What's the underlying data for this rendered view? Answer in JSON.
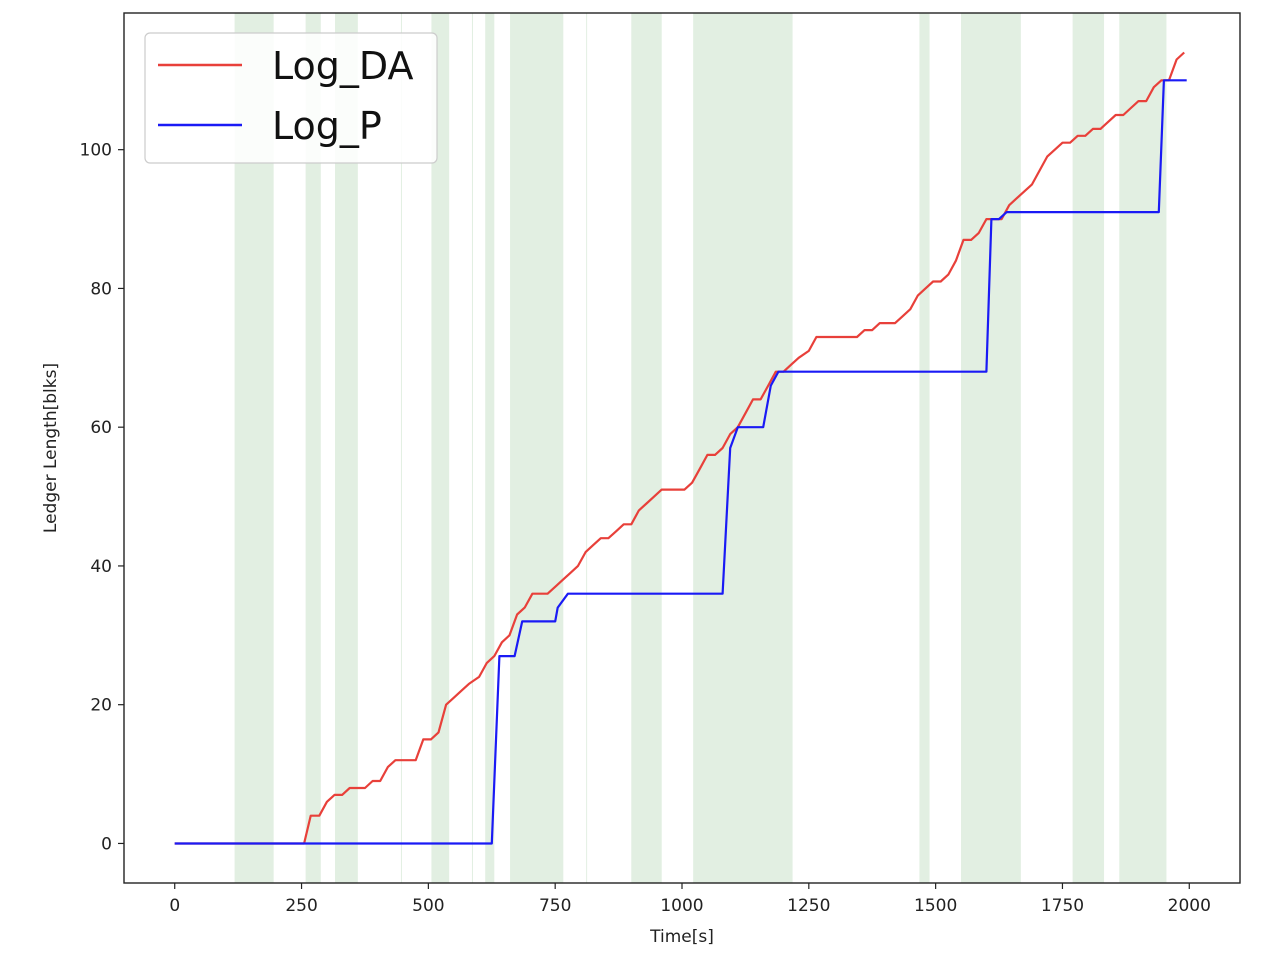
{
  "chart_data": {
    "type": "line",
    "xlabel": "Time[s]",
    "ylabel": "Ledger Length[blks]",
    "xlim": [
      -100,
      2100
    ],
    "ylim": [
      -5.7,
      119.7
    ],
    "xticks": [
      0,
      250,
      500,
      750,
      1000,
      1250,
      1500,
      1750,
      2000
    ],
    "yticks": [
      0,
      20,
      40,
      60,
      80,
      100
    ],
    "grid": false,
    "legend_position": "upper-left",
    "shaded_intervals_color": "#d8ead8",
    "shaded_intervals": [
      [
        118,
        195
      ],
      [
        258,
        288
      ],
      [
        316,
        361
      ],
      [
        446,
        447
      ],
      [
        506,
        541
      ],
      [
        586,
        587
      ],
      [
        612,
        630
      ],
      [
        661,
        766
      ],
      [
        811,
        812
      ],
      [
        900,
        960
      ],
      [
        1022,
        1218
      ],
      [
        1468,
        1488
      ],
      [
        1550,
        1668
      ],
      [
        1770,
        1832
      ],
      [
        1862,
        1955
      ]
    ],
    "series": [
      {
        "name": "Log_DA",
        "color": "#e8403a",
        "x": [
          0,
          255,
          268,
          285,
          300,
          315,
          330,
          345,
          360,
          375,
          390,
          405,
          420,
          435,
          450,
          460,
          475,
          490,
          505,
          520,
          535,
          550,
          565,
          580,
          600,
          615,
          630,
          645,
          660,
          675,
          690,
          705,
          720,
          735,
          750,
          765,
          780,
          795,
          810,
          825,
          840,
          855,
          870,
          885,
          900,
          915,
          930,
          945,
          960,
          975,
          990,
          1005,
          1020,
          1035,
          1050,
          1065,
          1080,
          1095,
          1110,
          1125,
          1140,
          1155,
          1170,
          1185,
          1200,
          1215,
          1230,
          1250,
          1265,
          1280,
          1300,
          1315,
          1330,
          1345,
          1360,
          1375,
          1390,
          1405,
          1420,
          1435,
          1450,
          1465,
          1480,
          1495,
          1510,
          1525,
          1540,
          1555,
          1570,
          1585,
          1600,
          1615,
          1630,
          1645,
          1660,
          1675,
          1690,
          1705,
          1720,
          1735,
          1750,
          1765,
          1780,
          1795,
          1810,
          1825,
          1840,
          1855,
          1870,
          1885,
          1900,
          1915,
          1930,
          1945,
          1960,
          1975,
          1990
        ],
        "values": [
          0,
          0,
          4,
          4,
          6,
          7,
          7,
          8,
          8,
          8,
          9,
          9,
          11,
          12,
          12,
          12,
          12,
          15,
          15,
          16,
          20,
          21,
          22,
          23,
          24,
          26,
          27,
          29,
          30,
          33,
          34,
          36,
          36,
          36,
          37,
          38,
          39,
          40,
          42,
          43,
          44,
          44,
          45,
          46,
          46,
          48,
          49,
          50,
          51,
          51,
          51,
          51,
          52,
          54,
          56,
          56,
          57,
          59,
          60,
          62,
          64,
          64,
          66,
          68,
          68,
          69,
          70,
          71,
          73,
          73,
          73,
          73,
          73,
          73,
          74,
          74,
          75,
          75,
          75,
          76,
          77,
          79,
          80,
          81,
          81,
          82,
          84,
          87,
          87,
          88,
          90,
          90,
          90,
          92,
          93,
          94,
          95,
          97,
          99,
          100,
          101,
          101,
          102,
          102,
          103,
          103,
          104,
          105,
          105,
          106,
          107,
          107,
          109,
          110,
          110,
          113,
          114
        ]
      },
      {
        "name": "Log_P",
        "color": "#1a1af5",
        "x": [
          0,
          625,
          640,
          670,
          685,
          720,
          750,
          755,
          775,
          1075,
          1080,
          1095,
          1110,
          1140,
          1160,
          1175,
          1190,
          1210,
          1230,
          1600,
          1610,
          1625,
          1640,
          1700,
          1930,
          1940,
          1950,
          1995
        ],
        "values": [
          0,
          0,
          27,
          27,
          32,
          32,
          32,
          34,
          36,
          36,
          36,
          57,
          60,
          60,
          60,
          66,
          68,
          68,
          68,
          68,
          90,
          90,
          91,
          91,
          91,
          91,
          110,
          110
        ]
      }
    ]
  }
}
